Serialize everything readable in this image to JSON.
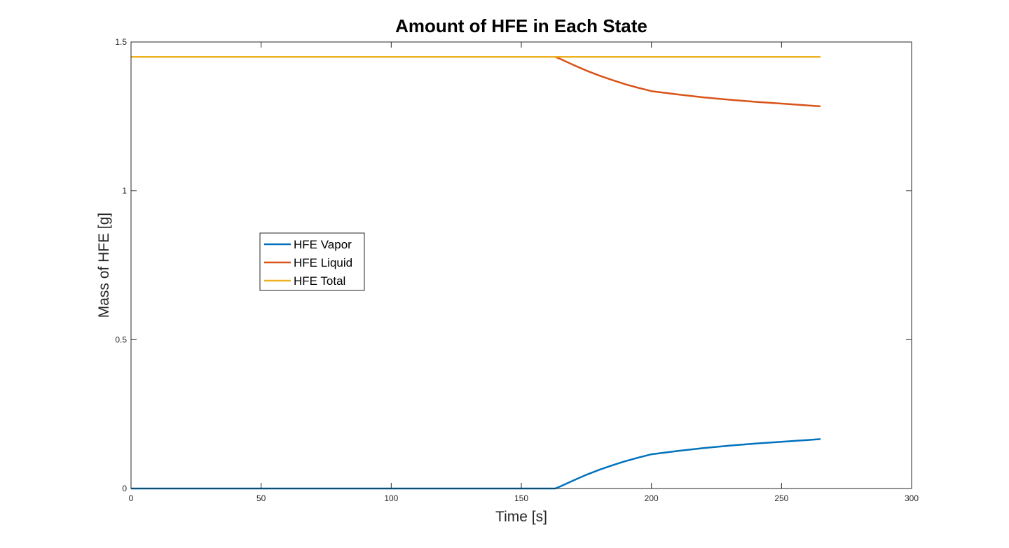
{
  "chart_data": {
    "type": "line",
    "title": "Amount of HFE in Each State",
    "xlabel": "Time [s]",
    "ylabel": "Mass of HFE [g]",
    "xlim": [
      0,
      300
    ],
    "ylim": [
      0,
      1.5
    ],
    "xticks": [
      0,
      50,
      100,
      150,
      200,
      250,
      300
    ],
    "xtick_labels": [
      "0",
      "50",
      "100",
      "150",
      "200",
      "250",
      "300"
    ],
    "yticks": [
      0,
      0.5,
      1,
      1.5
    ],
    "ytick_labels": [
      "0",
      "0.5",
      "1",
      "1.5"
    ],
    "grid": false,
    "legend": {
      "placement": "center-left",
      "entries": [
        "HFE Vapor",
        "HFE Liquid",
        "HFE Total"
      ]
    },
    "series": [
      {
        "name": "HFE Vapor",
        "color": "#0072BD",
        "x": [
          0,
          50,
          100,
          150,
          163,
          165,
          170,
          175,
          180,
          185,
          190,
          195,
          200,
          210,
          220,
          230,
          240,
          250,
          260,
          265
        ],
        "y": [
          0,
          0,
          0,
          0,
          0,
          0.007,
          0.027,
          0.046,
          0.063,
          0.078,
          0.092,
          0.104,
          0.115,
          0.126,
          0.136,
          0.144,
          0.151,
          0.157,
          0.163,
          0.166
        ]
      },
      {
        "name": "HFE Liquid",
        "color": "#D95319",
        "x": [
          0,
          50,
          100,
          150,
          163,
          165,
          170,
          175,
          180,
          185,
          190,
          195,
          200,
          210,
          220,
          230,
          240,
          250,
          260,
          265
        ],
        "y": [
          1.45,
          1.45,
          1.45,
          1.45,
          1.45,
          1.443,
          1.423,
          1.404,
          1.387,
          1.372,
          1.358,
          1.346,
          1.335,
          1.324,
          1.314,
          1.306,
          1.299,
          1.293,
          1.287,
          1.284
        ]
      },
      {
        "name": "HFE Total",
        "color": "#EDB120",
        "x": [
          0,
          265
        ],
        "y": [
          1.45,
          1.45
        ]
      }
    ]
  }
}
